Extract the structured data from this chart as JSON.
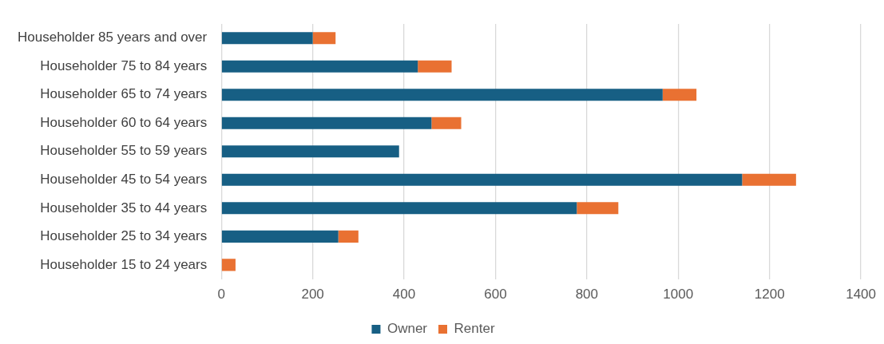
{
  "chart_data": {
    "type": "bar",
    "orientation": "horizontal",
    "stacked": true,
    "categories": [
      "Householder 85 years and over",
      "Householder 75 to 84 years",
      "Householder 65 to 74 years",
      "Householder 60 to 64 years",
      "Householder 55 to 59 years",
      "Householder 45 to 54 years",
      "Householder 35 to 44 years",
      "Householder 25 to 34 years",
      "Householder 15 to 24 years"
    ],
    "series": [
      {
        "name": "Owner",
        "color": "#175f84",
        "values": [
          200,
          430,
          966,
          460,
          389,
          1140,
          778,
          256,
          0
        ]
      },
      {
        "name": "Renter",
        "color": "#e97132",
        "values": [
          50,
          74,
          74,
          65,
          0,
          118,
          91,
          44,
          31
        ]
      }
    ],
    "xlim": [
      0,
      1400
    ],
    "xticks": [
      0,
      200,
      400,
      600,
      800,
      1000,
      1200,
      1400
    ],
    "grid": "x",
    "legend": "bottom"
  }
}
